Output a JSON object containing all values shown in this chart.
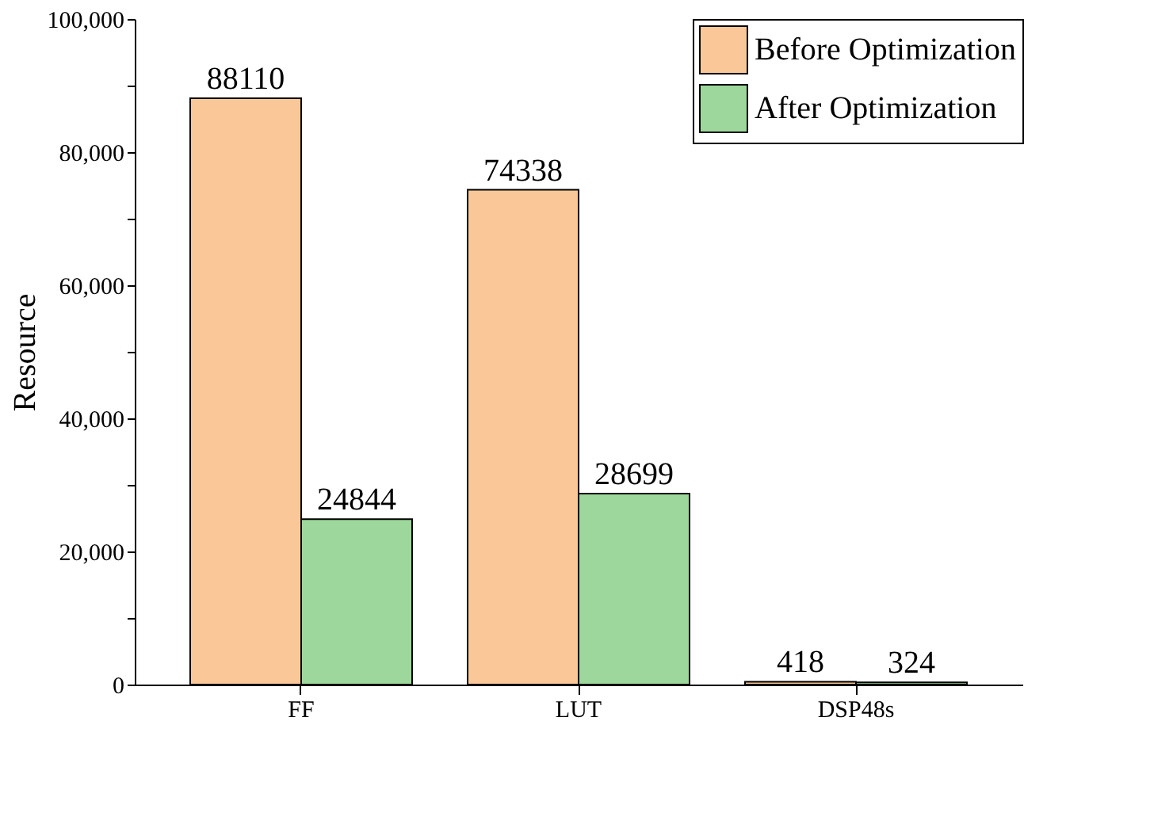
{
  "chart_data": {
    "type": "bar",
    "ylabel": "Resource",
    "categories": [
      "FF",
      "LUT",
      "DSP48s"
    ],
    "series": [
      {
        "name": "Before Optimization",
        "color": "#fac898",
        "values": [
          88110,
          74338,
          418
        ]
      },
      {
        "name": "After Optimization",
        "color": "#9dd79b",
        "values": [
          24844,
          28699,
          324
        ]
      }
    ],
    "ylim": [
      0,
      100000
    ],
    "yticks": [
      0,
      {
        "value": 10000,
        "label": null
      },
      "20,000",
      {
        "value": 30000,
        "label": null
      },
      {
        "value": 40000,
        "label": "40,000"
      },
      {
        "value": 50000,
        "label": null
      },
      {
        "value": 60000,
        "label": "60,000"
      },
      {
        "value": 70000,
        "label": null
      },
      {
        "value": 80000,
        "label": "80,000"
      },
      {
        "value": 90000,
        "label": null
      },
      {
        "value": 100000,
        "label": "100,000"
      }
    ],
    "data_labels": true,
    "legend": "top right",
    "grid": false
  }
}
